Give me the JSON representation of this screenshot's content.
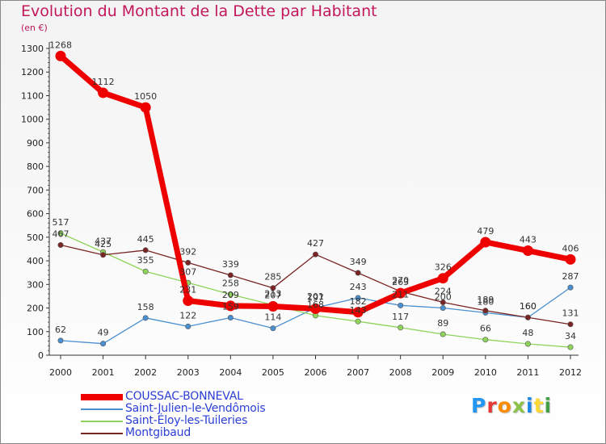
{
  "header": {
    "title": "Evolution du Montant de la Dette par Habitant",
    "unit": "(en €)"
  },
  "logo": {
    "text": "Proxiti",
    "colors": [
      "#2196f3",
      "#e53935",
      "#fb8c00",
      "#8bc34a",
      "#1e88e5",
      "#fdd835",
      "#43a047"
    ]
  },
  "chart_data": {
    "type": "line",
    "title": "Evolution du Montant de la Dette par Habitant",
    "ylabel": "(en €)",
    "ylim": [
      0,
      1300
    ],
    "yticks": [
      0,
      100,
      200,
      300,
      400,
      500,
      600,
      700,
      800,
      900,
      1000,
      1100,
      1200,
      1300
    ],
    "x": [
      "2000",
      "2001",
      "2002",
      "2003",
      "2004",
      "2005",
      "2006",
      "2007",
      "2008",
      "2009",
      "2010",
      "2011",
      "2012"
    ],
    "grid": false,
    "legend_position": "bottom-left",
    "series": [
      {
        "name": "COUSSAC-BONNEVAL",
        "color": "#ee0000",
        "values": [
          1268,
          1112,
          1050,
          231,
          209,
          207,
          197,
          182,
          263,
          326,
          479,
          443,
          406
        ]
      },
      {
        "name": "Saint-Julien-le-Vendômois",
        "color": "#4a8fd0",
        "values": [
          62,
          49,
          158,
          122,
          159,
          114,
          201,
          243,
          211,
          200,
          180,
          160,
          287
        ]
      },
      {
        "name": "Saint-Éloy-les-Tuileries",
        "color": "#8fd45a",
        "values": [
          517,
          437,
          355,
          307,
          258,
          213,
          168,
          143,
          117,
          89,
          66,
          48,
          34
        ]
      },
      {
        "name": "Montgibaud",
        "color": "#7a2424",
        "values": [
          467,
          425,
          445,
          392,
          339,
          285,
          427,
          349,
          270,
          224,
          189,
          160,
          131
        ]
      }
    ]
  }
}
